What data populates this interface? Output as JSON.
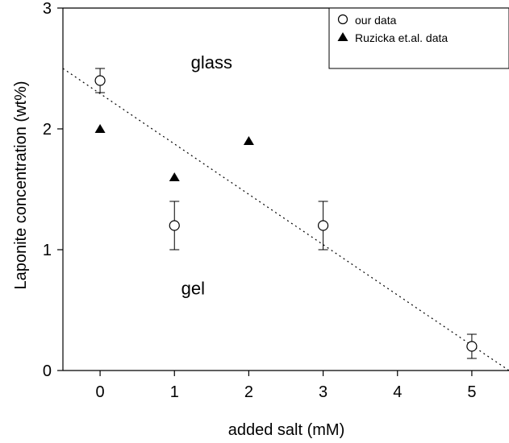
{
  "chart_data": {
    "type": "scatter",
    "xlabel": "added salt (mM)",
    "ylabel": "Laponite concentration (wt%)",
    "xlim": [
      -0.5,
      5.5
    ],
    "ylim": [
      0,
      3
    ],
    "xticks": [
      0,
      1,
      2,
      3,
      4,
      5
    ],
    "yticks": [
      0,
      1,
      2,
      3
    ],
    "grid": false,
    "legend_position": "top-right",
    "series": [
      {
        "name": "our data",
        "marker": "open-circle",
        "color": "#000000",
        "points": [
          {
            "x": 0,
            "y": 2.4,
            "err": 0.1
          },
          {
            "x": 1,
            "y": 1.2,
            "err": 0.2
          },
          {
            "x": 3,
            "y": 1.2,
            "err": 0.2
          },
          {
            "x": 5,
            "y": 0.2,
            "err": 0.1
          }
        ]
      },
      {
        "name": "Ruzicka et.al. data",
        "marker": "filled-triangle",
        "color": "#000000",
        "points": [
          {
            "x": 0,
            "y": 2.0
          },
          {
            "x": 1,
            "y": 1.6
          },
          {
            "x": 2,
            "y": 1.9
          }
        ]
      }
    ],
    "dotted_line": {
      "from": [
        -0.5,
        2.5
      ],
      "to": [
        5.5,
        0.0
      ]
    },
    "annotations": [
      {
        "text": "glass",
        "x": 1.5,
        "y": 2.5
      },
      {
        "text": "gel",
        "x": 1.25,
        "y": 0.63
      }
    ]
  }
}
